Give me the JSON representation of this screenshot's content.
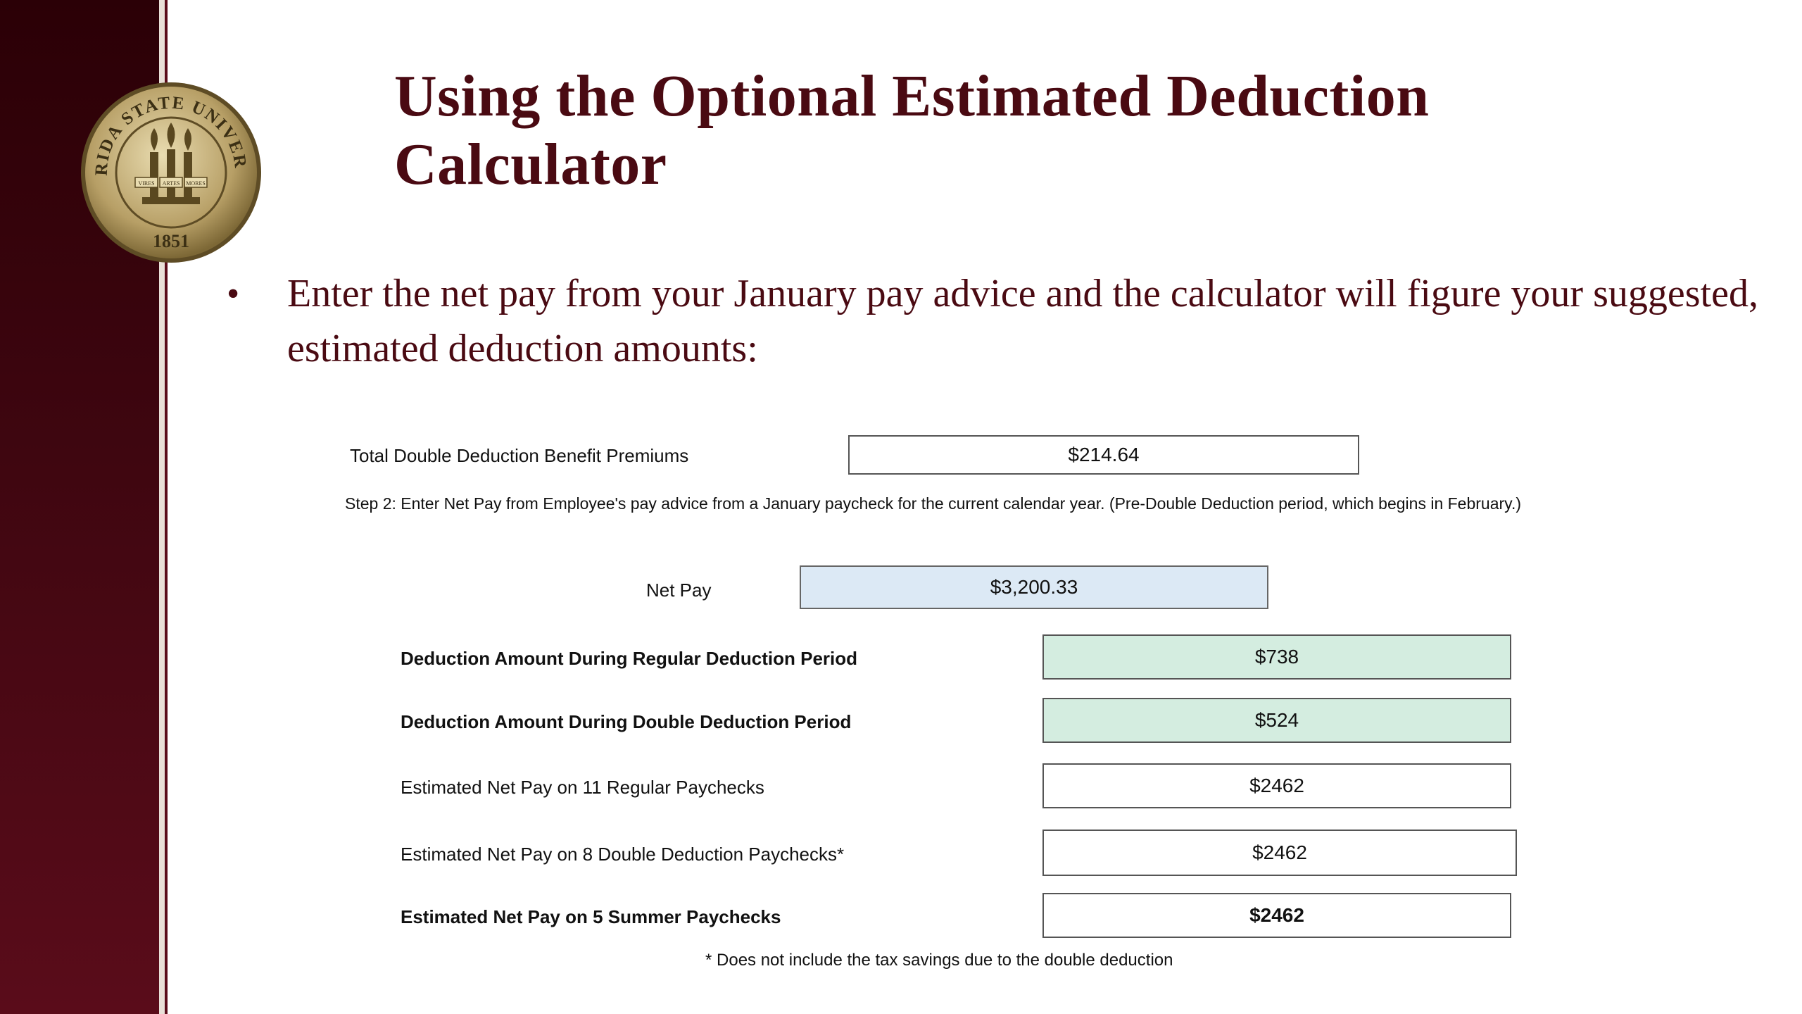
{
  "slide": {
    "title": "Using the Optional Estimated Deduction Calculator",
    "bullet": "Enter the net pay from your January pay advice and the calculator will figure your suggested, estimated deduction amounts:",
    "seal": {
      "arc_text": "FLORIDA STATE UNIVERSITY",
      "year": "1851",
      "motto": [
        "VIRES",
        "ARTES",
        "MORES"
      ]
    }
  },
  "calculator": {
    "premiums": {
      "label": "Total Double Deduction Benefit Premiums",
      "value": "$214.64"
    },
    "step2": "Step 2:  Enter Net Pay from Employee's pay advice from a January paycheck for the current calendar year.  (Pre-Double Deduction period, which begins in February.)",
    "net_pay": {
      "label": "Net Pay",
      "value": "$3,200.33"
    },
    "rows": [
      {
        "label": "Deduction Amount During Regular Deduction Period",
        "value": "$738"
      },
      {
        "label": "Deduction Amount During Double Deduction Period",
        "value": "$524"
      },
      {
        "label": "Estimated Net Pay on 11 Regular Paychecks",
        "value": "$2462"
      },
      {
        "label": "Estimated Net Pay on 8 Double Deduction Paychecks*",
        "value": "$2462"
      },
      {
        "label": "Estimated Net Pay on 5 Summer Paychecks",
        "value": "$2462"
      }
    ],
    "footnote": "* Does not include the tax savings due to the double deduction"
  },
  "colors": {
    "maroon": "#4a0a12",
    "net_pay_fill": "#dce9f5",
    "deduction_fill": "#d4ede0"
  }
}
